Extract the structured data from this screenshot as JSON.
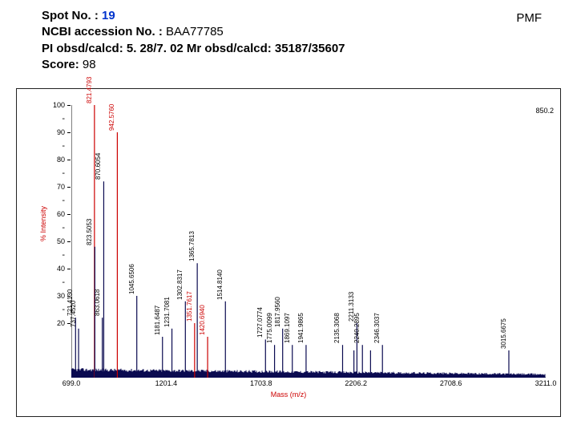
{
  "header": {
    "spot_label": "Spot No. : ",
    "spot_value": "19",
    "ncbi_label": "NCBI accession No. : ",
    "ncbi_value": "BAA77785",
    "pi_line": "PI obsd/calcd: 5. 28/7. 02  Mr obsd/calcd: 35187/35607",
    "score_label": "Score: ",
    "score_value": "98",
    "pmf": "PMF"
  },
  "chart": {
    "type": "mass_spectrum",
    "xlabel": "Mass (m/z)",
    "ylabel": "% Intensity",
    "top_right": "850.2",
    "xlim": [
      699.0,
      3211.0
    ],
    "ylim": [
      0,
      100
    ],
    "x_ticks": [
      699.0,
      1201.4,
      1703.8,
      2206.2,
      2708.6,
      3211.0
    ],
    "y_ticks_major": [
      20,
      30,
      40,
      50,
      60,
      70,
      80,
      90,
      100
    ],
    "y_tick_minor_dashes": [
      25,
      35,
      45,
      55,
      65,
      75,
      85,
      95
    ],
    "axis_color": "#000000",
    "label_color": "#cc0000",
    "peak_color": "#0a0a50",
    "peak_color_red": "#cc0000",
    "tick_fontsize": 9,
    "axis_fontsize": 9,
    "peaklabel_fontsize": 8,
    "peaks": [
      {
        "mz": 721.413,
        "i": 22,
        "label": "721.4130"
      },
      {
        "mz": 737.452,
        "i": 18,
        "label": "737.4520"
      },
      {
        "mz": 821.4793,
        "i": 100,
        "label": "821.4793",
        "red": true
      },
      {
        "mz": 823.5053,
        "i": 48,
        "label": "823.5053"
      },
      {
        "mz": 863.0618,
        "i": 22,
        "label": "863.0618"
      },
      {
        "mz": 870.6054,
        "i": 72,
        "label": "870.6054"
      },
      {
        "mz": 942.576,
        "i": 90,
        "label": "942.5760",
        "red": true
      },
      {
        "mz": 1045.6506,
        "i": 30,
        "label": "1045.6506"
      },
      {
        "mz": 1181.6487,
        "i": 15,
        "label": "1181.6487"
      },
      {
        "mz": 1231.7081,
        "i": 18,
        "label": "1231.7081"
      },
      {
        "mz": 1302.8317,
        "i": 28,
        "label": "1302.8317"
      },
      {
        "mz": 1351.7617,
        "i": 20,
        "label": "1351.7617",
        "red": true
      },
      {
        "mz": 1365.7813,
        "i": 42,
        "label": "1365.7813"
      },
      {
        "mz": 1420.694,
        "i": 15,
        "label": "1420.6940",
        "red": true
      },
      {
        "mz": 1514.814,
        "i": 28,
        "label": "1514.8140"
      },
      {
        "mz": 1727.0774,
        "i": 14,
        "label": "1727.0774"
      },
      {
        "mz": 1775.0099,
        "i": 12,
        "label": "1775.0099"
      },
      {
        "mz": 1817.956,
        "i": 18,
        "label": "1817.9560"
      },
      {
        "mz": 1869.1097,
        "i": 12,
        "label": "1869.1097"
      },
      {
        "mz": 1941.9865,
        "i": 12,
        "label": "1941.9865"
      },
      {
        "mz": 2135.3068,
        "i": 12,
        "label": "2135.3068"
      },
      {
        "mz": 2195.3108,
        "i": 10,
        "label": ""
      },
      {
        "mz": 2211.3133,
        "i": 20,
        "label": "2211.3133"
      },
      {
        "mz": 2240.2895,
        "i": 12,
        "label": "2240.2895"
      },
      {
        "mz": 2283.3166,
        "i": 10,
        "label": ""
      },
      {
        "mz": 2346.3037,
        "i": 12,
        "label": "2346.3037"
      },
      {
        "mz": 3015.6675,
        "i": 10,
        "label": "3015.6675"
      }
    ],
    "noise_baseline": 8,
    "noise_variation": 4
  }
}
